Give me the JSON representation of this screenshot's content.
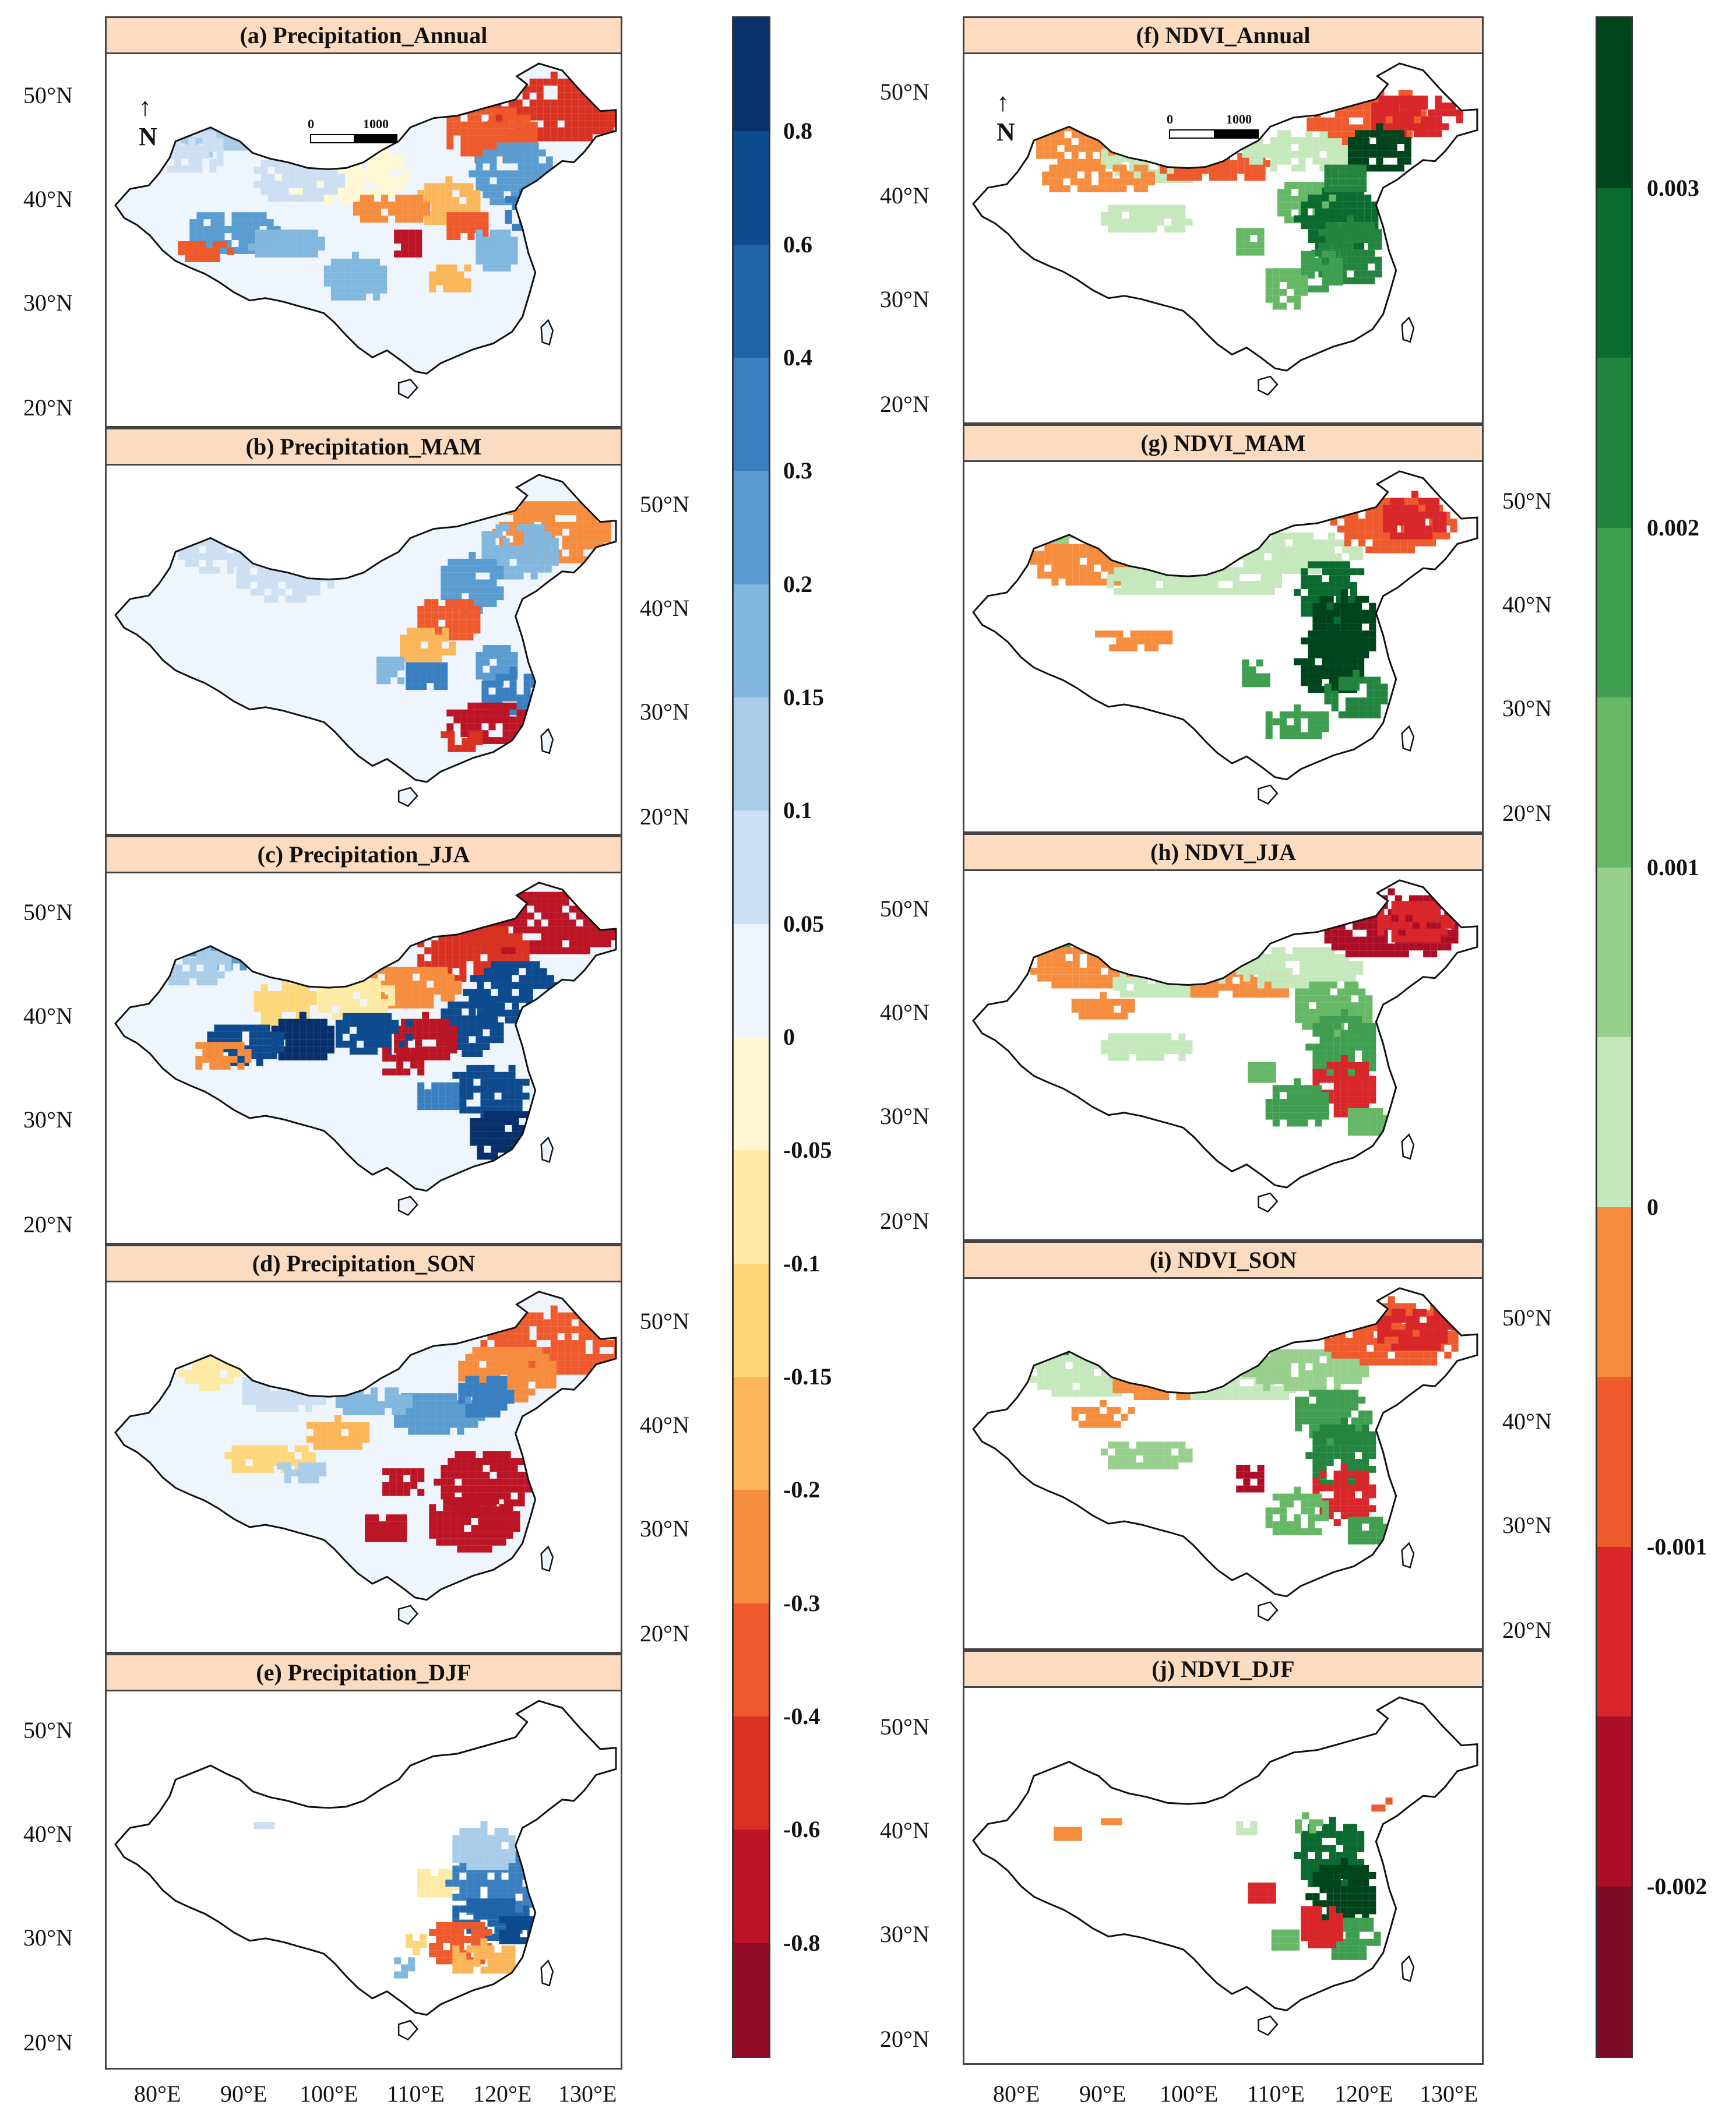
{
  "left_panels": [
    {
      "title": "(a) Precipitation_Annual"
    },
    {
      "title": "(b) Precipitation_MAM"
    },
    {
      "title": "(c) Precipitation_JJA"
    },
    {
      "title": "(d) Precipitation_SON"
    },
    {
      "title": "(e) Precipitation_DJF"
    }
  ],
  "right_panels": [
    {
      "title": "(f) NDVI_Annual"
    },
    {
      "title": "(g) NDVI_MAM"
    },
    {
      "title": "(h) NDVI_JJA"
    },
    {
      "title": "(i) NDVI_SON"
    },
    {
      "title": "(j) NDVI_DJF"
    }
  ],
  "lat_labels": [
    "50°N",
    "40°N",
    "30°N",
    "20°N"
  ],
  "lon_labels": [
    "80°E",
    "90°E",
    "100°E",
    "110°E",
    "120°E",
    "130°E"
  ],
  "north_label": "N",
  "scale": {
    "zero": "0",
    "dist": "1000 km"
  },
  "precip_colorbar": {
    "ticks": [
      "0.8",
      "0.6",
      "0.4",
      "0.3",
      "0.2",
      "0.15",
      "0.1",
      "0.05",
      "0",
      "-0.05",
      "-0.1",
      "-0.15",
      "-0.2",
      "-0.3",
      "-0.4",
      "-0.6",
      "-0.8"
    ],
    "colors": [
      "#08306b",
      "#0d4a8e",
      "#1f63a8",
      "#3a7fbf",
      "#5a9bd0",
      "#82b7de",
      "#a9cde9",
      "#cde0f3",
      "#eef5fd",
      "#fff8d2",
      "#fdeaa4",
      "#fed77b",
      "#fcb65a",
      "#f68d3e",
      "#ee5a2c",
      "#d93222",
      "#bb1525",
      "#900c26"
    ]
  },
  "ndvi_colorbar": {
    "ticks": [
      "0.003",
      "0.002",
      "0.001",
      "0",
      "-0.001",
      "-0.002"
    ],
    "colors": [
      "#00441b",
      "#0b6a30",
      "#23843f",
      "#3f9e4f",
      "#66b866",
      "#97d08d",
      "#c6e8bd",
      "#f68d3e",
      "#ef5a2d",
      "#d8262b",
      "#ad0e27",
      "#7a0c25"
    ]
  }
}
